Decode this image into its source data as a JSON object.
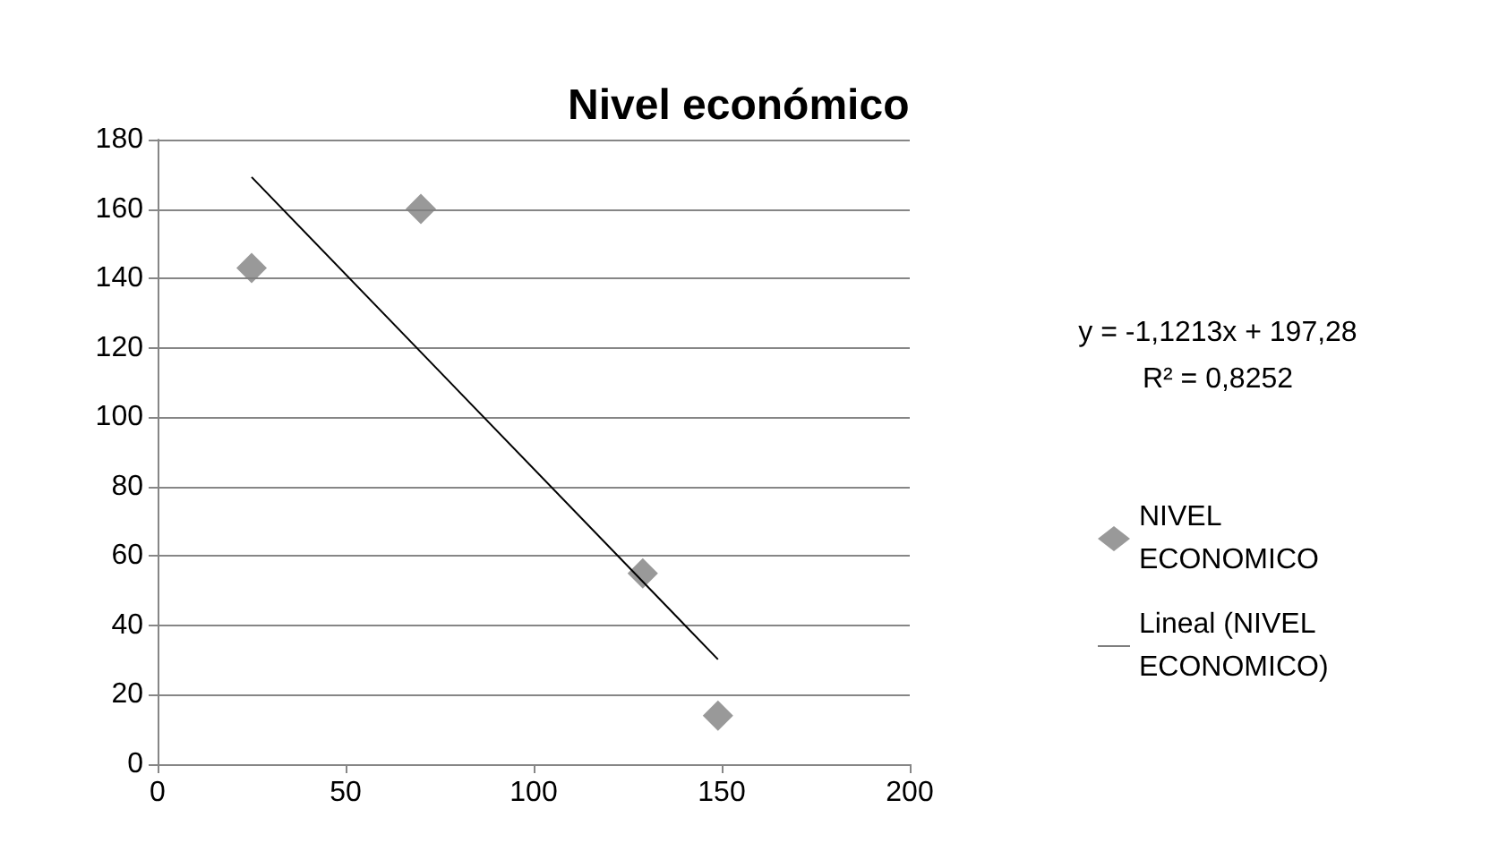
{
  "chart_data": {
    "type": "scatter",
    "title": "Nivel económico",
    "xlim": [
      0,
      200
    ],
    "xticks": [
      0,
      50,
      100,
      150,
      200
    ],
    "ylim": [
      0,
      180
    ],
    "yticks": [
      0,
      20,
      40,
      60,
      80,
      100,
      120,
      140,
      160,
      180
    ],
    "grid": "y",
    "legend": "right",
    "marker": "diamond",
    "annotations": [
      "y = -1,1213x + 197,28",
      "R² = 0,8252"
    ],
    "series": [
      {
        "name": "NIVEL ECONOMICO",
        "color": "#7f7f7f",
        "x": [
          25,
          70,
          129,
          149
        ],
        "values": [
          143,
          160,
          55,
          14
        ]
      },
      {
        "name": "Lineal (NIVEL ECONOMICO)",
        "type": "line",
        "color": "#000000",
        "x": [
          25,
          149
        ],
        "values": [
          169.2,
          30.2
        ],
        "marker": "none",
        "line_style": "solid"
      }
    ]
  }
}
